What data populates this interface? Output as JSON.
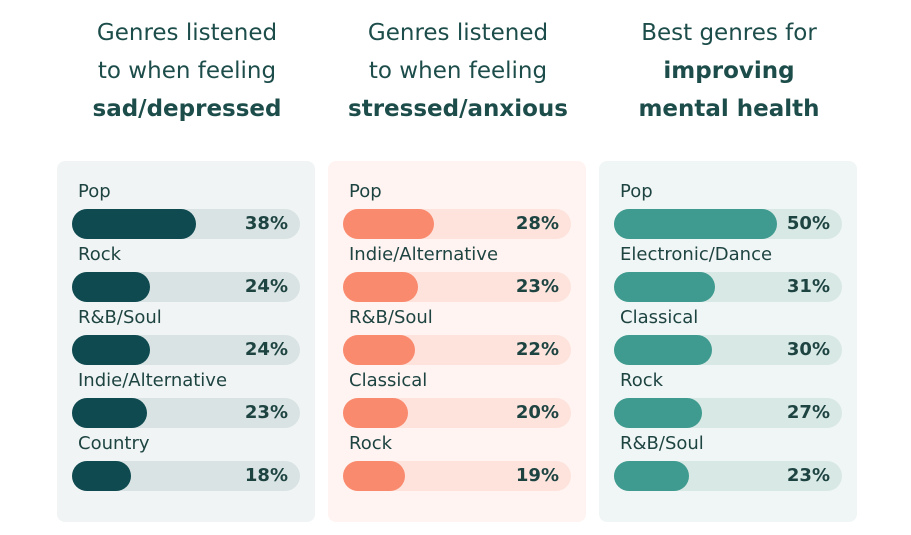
{
  "chart_data": [
    {
      "type": "bar",
      "title_lines": [
        "Genres listened",
        "to when feeling"
      ],
      "title_bold": "sad/depressed",
      "categories": [
        "Pop",
        "Rock",
        "R&B/Soul",
        "Indie/Alternative",
        "Country"
      ],
      "values": [
        38,
        24,
        24,
        23,
        18
      ],
      "value_labels": [
        "38%",
        "24%",
        "24%",
        "23%",
        "18%"
      ],
      "unit": "%",
      "xlim": [
        0,
        70
      ],
      "colors": {
        "bar": "#0e4a50",
        "track": "#d9e3e3",
        "panel": "#f0f4f4"
      }
    },
    {
      "type": "bar",
      "title_lines": [
        "Genres listened",
        "to when feeling"
      ],
      "title_bold": "stressed/anxious",
      "categories": [
        "Pop",
        "Indie/Alternative",
        "R&B/Soul",
        "Classical",
        "Rock"
      ],
      "values": [
        28,
        23,
        22,
        20,
        19
      ],
      "value_labels": [
        "28%",
        "23%",
        "22%",
        "20%",
        "19%"
      ],
      "unit": "%",
      "xlim": [
        0,
        70
      ],
      "colors": {
        "bar": "#fa8a6e",
        "track": "#fde3dc",
        "panel": "#fff4f1"
      }
    },
    {
      "type": "bar",
      "title_lines": [
        "Best genres for"
      ],
      "title_bold_lines": [
        "improving",
        "mental health"
      ],
      "categories": [
        "Pop",
        "Electronic/Dance",
        "Classical",
        "Rock",
        "R&B/Soul"
      ],
      "values": [
        50,
        31,
        30,
        27,
        23
      ],
      "value_labels": [
        "50%",
        "31%",
        "30%",
        "27%",
        "23%"
      ],
      "unit": "%",
      "xlim": [
        0,
        70
      ],
      "colors": {
        "bar": "#3f9b8f",
        "track": "#d8e8e5",
        "panel": "#f0f6f5"
      }
    }
  ]
}
